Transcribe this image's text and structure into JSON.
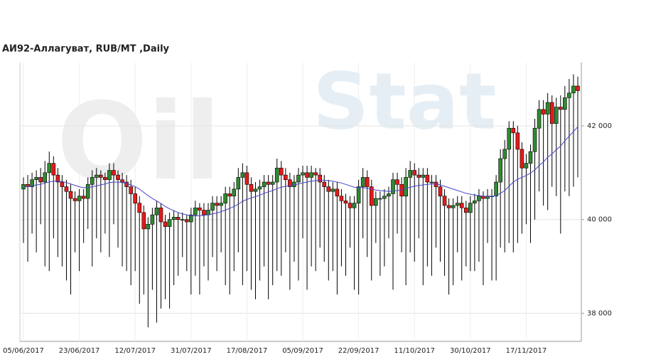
{
  "chart_data": {
    "type": "candlestick",
    "title": "АИ92-Аллагуват,  RUB/MT ,Daily",
    "watermark": [
      "Oil",
      "Stat"
    ],
    "categories": [
      "05/06/2017",
      null,
      null,
      null,
      null,
      null,
      null,
      null,
      null,
      null,
      null,
      null,
      null,
      "23/06/2017",
      null,
      null,
      null,
      null,
      null,
      null,
      null,
      null,
      null,
      null,
      null,
      null,
      "12/07/2017",
      null,
      null,
      null,
      null,
      null,
      null,
      null,
      null,
      null,
      null,
      null,
      null,
      "31/07/2017",
      null,
      null,
      null,
      null,
      null,
      null,
      null,
      null,
      null,
      null,
      null,
      null,
      "17/08/2017",
      null,
      null,
      null,
      null,
      null,
      null,
      null,
      null,
      null,
      null,
      null,
      null,
      "05/09/2017",
      null,
      null,
      null,
      null,
      null,
      null,
      null,
      null,
      null,
      null,
      null,
      null,
      "22/09/2017",
      null,
      null,
      null,
      null,
      null,
      null,
      null,
      null,
      null,
      null,
      null,
      null,
      "11/10/2017",
      null,
      null,
      null,
      null,
      null,
      null,
      null,
      null,
      null,
      null,
      null,
      null,
      "30/10/2017",
      null,
      null,
      null,
      null,
      null,
      null,
      null,
      null,
      null,
      null,
      null,
      null,
      "17/11/2017",
      null,
      null,
      null,
      null,
      null,
      null,
      null,
      null,
      null,
      null,
      null,
      null
    ],
    "open": [
      40650,
      40750,
      40700,
      40850,
      40900,
      40800,
      41000,
      41200,
      40950,
      40800,
      40700,
      40600,
      40450,
      40400,
      40500,
      40450,
      40750,
      40900,
      40950,
      40900,
      40850,
      41050,
      40950,
      40850,
      40800,
      40700,
      40550,
      40350,
      40150,
      39800,
      39900,
      40100,
      40250,
      39950,
      39850,
      40000,
      40050,
      40000,
      40000,
      39950,
      40100,
      40250,
      40200,
      40100,
      40200,
      40350,
      40300,
      40350,
      40550,
      40500,
      40650,
      40900,
      41000,
      40750,
      40600,
      40650,
      40700,
      40800,
      40750,
      40800,
      41100,
      40950,
      40850,
      40700,
      40800,
      40950,
      41000,
      40900,
      41000,
      40950,
      40800,
      40700,
      40600,
      40650,
      40500,
      40400,
      40350,
      40250,
      40350,
      40700,
      40900,
      40700,
      40300,
      40450,
      40450,
      40500,
      40550,
      40850,
      40750,
      40500,
      40900,
      41050,
      40950,
      40900,
      40950,
      40800,
      40800,
      40700,
      40500,
      40300,
      40250,
      40300,
      40350,
      40250,
      40150,
      40350,
      40400,
      40500,
      40450,
      40500,
      40500,
      40800,
      41300,
      41500,
      41950,
      41850,
      41500,
      41100,
      41200,
      41450,
      41950,
      42350,
      42250,
      42500,
      42050,
      42400,
      42350,
      42600,
      42700,
      42850
    ],
    "high": [
      40900,
      40950,
      41000,
      41050,
      41100,
      41250,
      41450,
      41350,
      41100,
      40950,
      40850,
      40750,
      40600,
      40650,
      40650,
      40900,
      41050,
      41100,
      41050,
      41000,
      41200,
      41200,
      41050,
      41000,
      40950,
      40850,
      40700,
      40500,
      40300,
      40050,
      40250,
      40400,
      40350,
      40100,
      40150,
      40200,
      40150,
      40150,
      40100,
      40250,
      40400,
      40350,
      40350,
      40350,
      40500,
      40500,
      40500,
      40700,
      40700,
      40800,
      41100,
      41200,
      41150,
      40900,
      40800,
      40850,
      40950,
      40950,
      40950,
      41300,
      41250,
      41100,
      41000,
      40950,
      41100,
      41150,
      41150,
      41150,
      41100,
      41100,
      40950,
      40850,
      40800,
      40800,
      40650,
      40550,
      40500,
      40500,
      40850,
      41100,
      41050,
      40850,
      40600,
      40600,
      40650,
      40700,
      41000,
      41000,
      40900,
      41100,
      41250,
      41200,
      41100,
      41100,
      41100,
      40950,
      40950,
      40850,
      40650,
      40450,
      40450,
      40500,
      40500,
      40400,
      40500,
      40550,
      40650,
      40600,
      40650,
      40650,
      40950,
      41500,
      41700,
      42100,
      42100,
      42000,
      41650,
      41400,
      41600,
      42150,
      42550,
      42550,
      42700,
      42650,
      42600,
      42650,
      42850,
      43000,
      43100,
      43050
    ],
    "low": [
      39500,
      39100,
      39700,
      39300,
      39900,
      39000,
      38900,
      39600,
      39200,
      39000,
      38700,
      38400,
      39300,
      38900,
      39500,
      39800,
      39000,
      39600,
      39300,
      39700,
      39200,
      39900,
      39400,
      39000,
      38900,
      38600,
      38900,
      38200,
      38400,
      37700,
      38500,
      37800,
      38100,
      38300,
      38100,
      38600,
      38800,
      39200,
      38900,
      38400,
      38800,
      38400,
      39000,
      38700,
      39200,
      38900,
      39300,
      38600,
      38400,
      38900,
      39300,
      38600,
      38900,
      38500,
      38300,
      38700,
      39000,
      38300,
      38600,
      38900,
      38800,
      39300,
      38500,
      39100,
      38700,
      39600,
      38500,
      39000,
      38900,
      39400,
      39100,
      38700,
      38900,
      38400,
      39000,
      38800,
      39400,
      38500,
      38400,
      39600,
      39200,
      38700,
      39500,
      38800,
      39000,
      39600,
      38500,
      39700,
      39300,
      38600,
      39300,
      39100,
      39600,
      38600,
      39000,
      38800,
      39400,
      39100,
      38800,
      38400,
      38600,
      39300,
      38700,
      39000,
      38900,
      38900,
      39100,
      38600,
      39500,
      38700,
      38700,
      39400,
      39300,
      39500,
      39300,
      39500,
      39700,
      39900,
      39500,
      40000,
      40600,
      40300,
      40200,
      40700,
      40500,
      39700,
      40600,
      40500,
      40700,
      40900
    ],
    "close": [
      40750,
      40700,
      40850,
      40900,
      40800,
      41000,
      41200,
      40950,
      40800,
      40700,
      40600,
      40450,
      40400,
      40500,
      40450,
      40750,
      40900,
      40950,
      40900,
      40850,
      41050,
      40950,
      40850,
      40800,
      40700,
      40550,
      40350,
      40150,
      39800,
      39900,
      40100,
      40250,
      39950,
      39850,
      40000,
      40050,
      40000,
      40000,
      39950,
      40100,
      40250,
      40200,
      40100,
      40200,
      40350,
      40300,
      40350,
      40550,
      40500,
      40650,
      40900,
      41000,
      40750,
      40600,
      40650,
      40700,
      40800,
      40750,
      40800,
      41100,
      40950,
      40850,
      40700,
      40800,
      40950,
      41000,
      40900,
      41000,
      40950,
      40800,
      40700,
      40600,
      40650,
      40500,
      40400,
      40350,
      40250,
      40350,
      40700,
      40900,
      40700,
      40300,
      40450,
      40450,
      40500,
      40550,
      40850,
      40750,
      40500,
      40900,
      41050,
      40950,
      40900,
      40950,
      40800,
      40800,
      40700,
      40500,
      40300,
      40250,
      40300,
      40350,
      40250,
      40150,
      40350,
      40400,
      40500,
      40450,
      40500,
      40500,
      40800,
      41300,
      41500,
      41950,
      41850,
      41500,
      41100,
      41200,
      41450,
      41950,
      42350,
      42250,
      42500,
      42050,
      42400,
      42350,
      42600,
      42700,
      42850,
      42750
    ],
    "ma": {
      "color": "#4444cc",
      "values": [
        40700,
        40700,
        40720,
        40740,
        40750,
        40780,
        40800,
        40820,
        40820,
        40810,
        40790,
        40760,
        40730,
        40700,
        40680,
        40680,
        40700,
        40720,
        40740,
        40760,
        40790,
        40800,
        40800,
        40790,
        40770,
        40740,
        40700,
        40650,
        40580,
        40510,
        40450,
        40400,
        40340,
        40280,
        40230,
        40190,
        40150,
        40120,
        40100,
        40080,
        40080,
        40080,
        40090,
        40100,
        40120,
        40140,
        40170,
        40200,
        40240,
        40280,
        40330,
        40390,
        40430,
        40460,
        40490,
        40520,
        40560,
        40590,
        40620,
        40660,
        40690,
        40710,
        40720,
        40740,
        40760,
        40780,
        40800,
        40820,
        40830,
        40840,
        40840,
        40830,
        40820,
        40800,
        40780,
        40750,
        40720,
        40690,
        40680,
        40680,
        40670,
        40650,
        40630,
        40620,
        40610,
        40600,
        40610,
        40620,
        40630,
        40660,
        40690,
        40710,
        40730,
        40740,
        40750,
        40760,
        40760,
        40740,
        40710,
        40680,
        40650,
        40620,
        40590,
        40560,
        40540,
        40520,
        40510,
        40500,
        40490,
        40490,
        40510,
        40560,
        40620,
        40710,
        40800,
        40860,
        40900,
        40940,
        40990,
        41060,
        41150,
        41230,
        41330,
        41400,
        41490,
        41570,
        41680,
        41780,
        41880,
        41980
      ]
    },
    "up_color": "#2f8a2f",
    "down_color": "#e31b1b",
    "ylim": [
      37400,
      43350
    ],
    "yticks": [
      {
        "value": 38000,
        "label": "38 000"
      },
      {
        "value": 40000,
        "label": "40 000"
      },
      {
        "value": 42000,
        "label": "42 000"
      }
    ],
    "grid": true
  }
}
